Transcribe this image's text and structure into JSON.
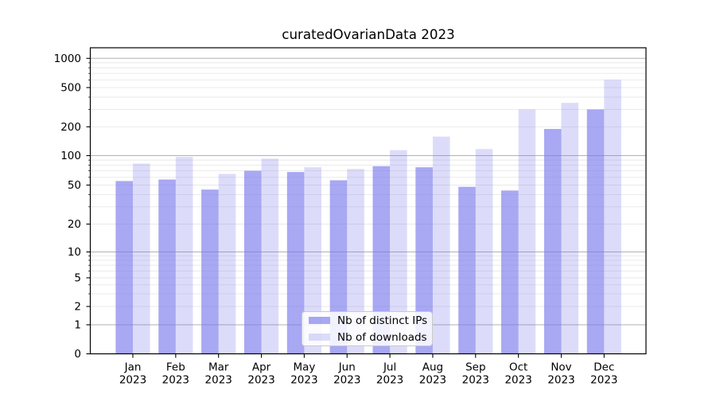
{
  "chart_data": {
    "type": "bar",
    "title": "curatedOvarianData 2023",
    "x": {
      "months": [
        "Jan",
        "Feb",
        "Mar",
        "Apr",
        "May",
        "Jun",
        "Jul",
        "Aug",
        "Sep",
        "Oct",
        "Nov",
        "Dec"
      ],
      "year": "2023"
    },
    "series": [
      {
        "name": "Nb of distinct IPs",
        "color": "#7575ec",
        "fill_opacity": 0.63,
        "values": [
          55,
          57,
          45,
          70,
          68,
          56,
          78,
          76,
          48,
          44,
          190,
          300
        ]
      },
      {
        "name": "Nb of downloads",
        "color": "#7575ec",
        "fill_opacity": 0.25,
        "values": [
          83,
          97,
          65,
          93,
          76,
          73,
          114,
          158,
          117,
          300,
          350,
          600
        ]
      }
    ],
    "y_axis": {
      "scale": "asinh",
      "tick_labels": [
        0,
        1,
        2,
        5,
        10,
        20,
        50,
        100,
        200,
        500,
        1000
      ]
    },
    "grid": {
      "major": true,
      "minor": true
    },
    "legend": {
      "position": "lower center"
    },
    "colors": {
      "background": "#ffffff",
      "major_grid": "#b2b2b2",
      "minor_grid": "#e8e8e8",
      "axis": "#000000"
    }
  }
}
